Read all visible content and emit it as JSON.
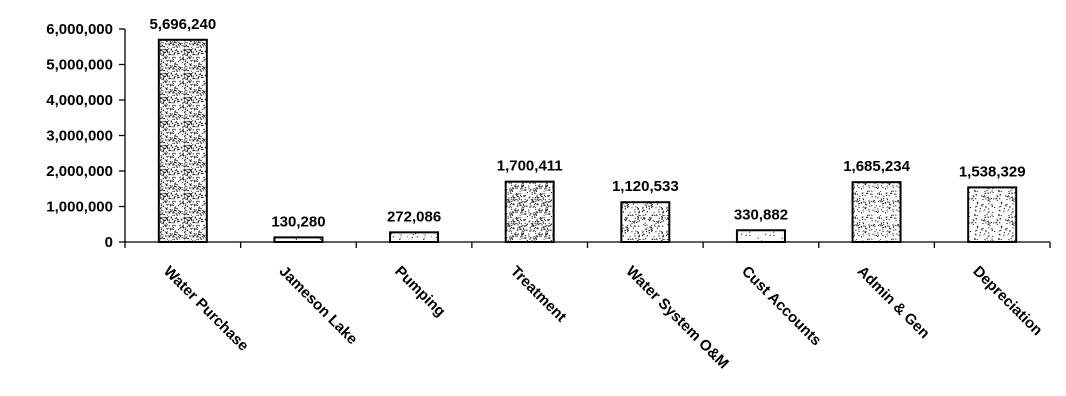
{
  "chart_data": {
    "type": "bar",
    "categories": [
      "Water Purchase",
      "Jameson Lake",
      "Pumping",
      "Treatment",
      "Water System O&M",
      "Cust Accounts",
      "Admin & Gen",
      "Depreciation"
    ],
    "values": [
      5696240,
      130280,
      272086,
      1700411,
      1120533,
      330882,
      1685234,
      1538329
    ],
    "data_labels": [
      "5,696,240",
      "130,280",
      "272,086",
      "1,700,411",
      "1,120,533",
      "330,882",
      "1,685,234",
      "1,538,329"
    ],
    "y_ticks": [
      0,
      1000000,
      2000000,
      3000000,
      4000000,
      5000000,
      6000000
    ],
    "y_tick_labels": [
      "0",
      "1,000,000",
      "2,000,000",
      "3,000,000",
      "4,000,000",
      "5,000,000",
      "6,000,000"
    ],
    "ylim": [
      0,
      6000000
    ],
    "title": "",
    "xlabel": "",
    "ylabel": "",
    "grid": false,
    "legend": "none",
    "bar_densities": [
      0.55,
      0.05,
      0.06,
      0.45,
      0.3,
      0.05,
      0.25,
      0.22
    ],
    "colors": {
      "bar_fill": "#ffffff",
      "bar_stroke": "#000000",
      "stipple": "#222222",
      "axis": "#000000"
    }
  }
}
